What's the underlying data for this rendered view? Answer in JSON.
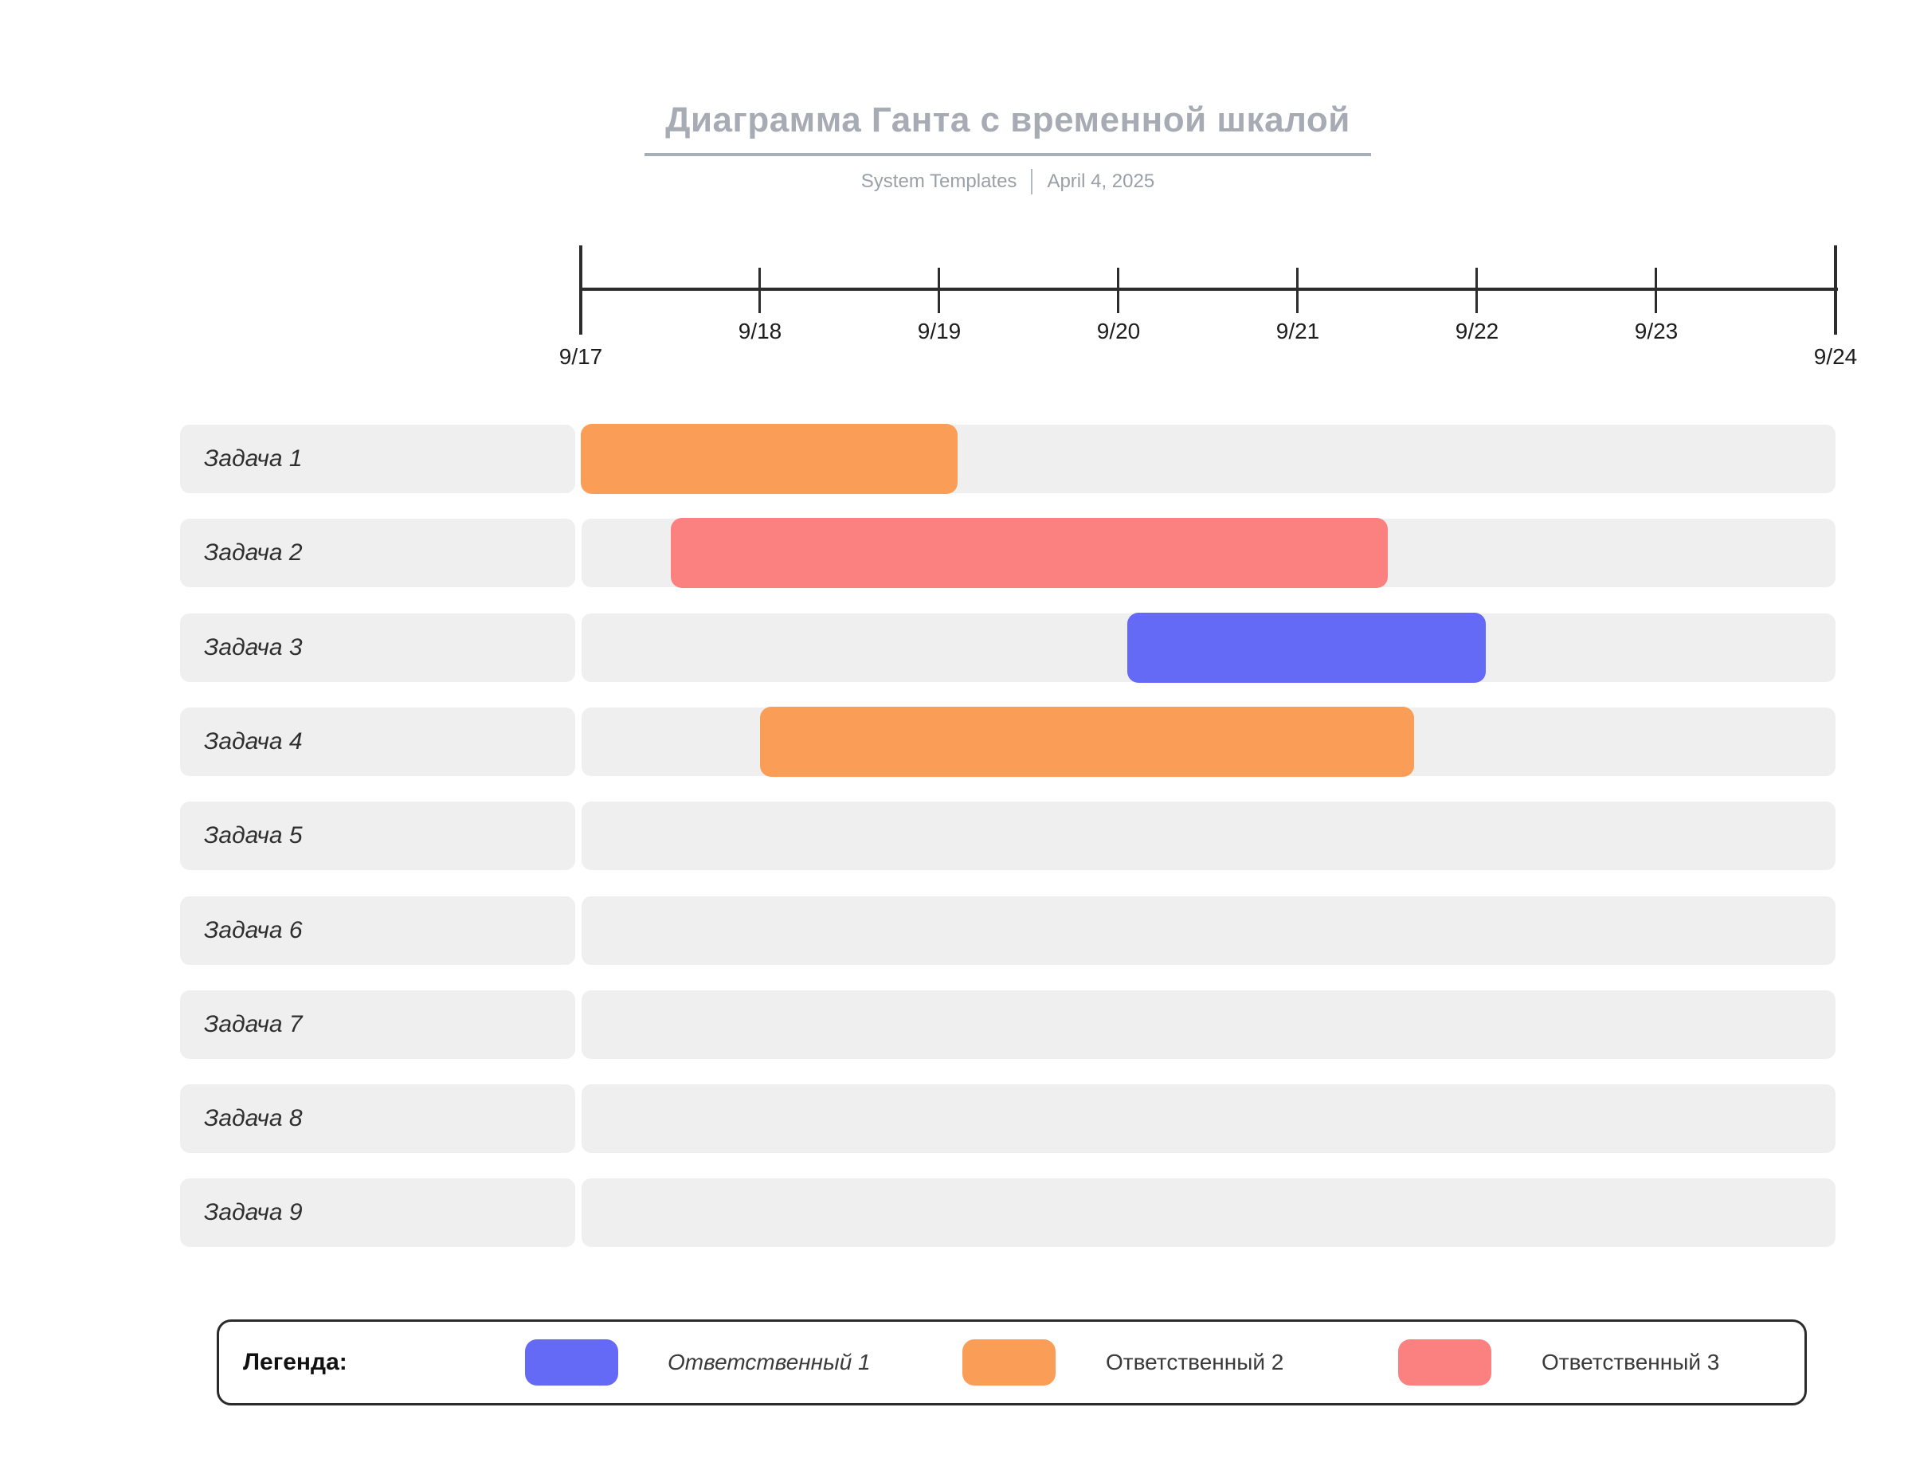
{
  "header": {
    "title": "Диаграмма Ганта с временной шкалой",
    "source": "System Templates",
    "date": "April 4, 2025"
  },
  "colors": {
    "orange": "#FA9D56",
    "salmon": "#FB8181",
    "blue": "#656AF6",
    "track_gray": "#EFEFEF",
    "title_gray": "#A7ABB3",
    "axis_dark": "#2D2D2D"
  },
  "chart_data": {
    "type": "gantt",
    "title": "Диаграмма Ганта с временной шкалой",
    "timeline": {
      "ticks": [
        "9/17",
        "9/18",
        "9/19",
        "9/20",
        "9/21",
        "9/22",
        "9/23",
        "9/24"
      ],
      "day_min": 0,
      "day_max": 7,
      "grid": false
    },
    "tasks": [
      {
        "label": "Задача 1",
        "assignee": "Ответственный 2",
        "color": "#FA9D56",
        "start_day": 0,
        "end_day": 2.1
      },
      {
        "label": "Задача 2",
        "assignee": "Ответственный 3",
        "color": "#FB8181",
        "start_day": 0.5,
        "end_day": 4.5
      },
      {
        "label": "Задача 3",
        "assignee": "Ответственный 1",
        "color": "#656AF6",
        "start_day": 3.05,
        "end_day": 5.05
      },
      {
        "label": "Задача 4",
        "assignee": "Ответственный 2",
        "color": "#FA9D56",
        "start_day": 1,
        "end_day": 4.65
      },
      {
        "label": "Задача 5",
        "assignee": null,
        "color": null,
        "start_day": null,
        "end_day": null
      },
      {
        "label": "Задача 6",
        "assignee": null,
        "color": null,
        "start_day": null,
        "end_day": null
      },
      {
        "label": "Задача 7",
        "assignee": null,
        "color": null,
        "start_day": null,
        "end_day": null
      },
      {
        "label": "Задача 8",
        "assignee": null,
        "color": null,
        "start_day": null,
        "end_day": null
      },
      {
        "label": "Задача 9",
        "assignee": null,
        "color": null,
        "start_day": null,
        "end_day": null
      }
    ],
    "legend_position": "bottom"
  },
  "legend": {
    "label": "Легенда:",
    "items": [
      {
        "label": "Ответственный 1",
        "color": "#656AF6",
        "italic": true
      },
      {
        "label": "Ответственный 2",
        "color": "#FA9D56",
        "italic": false
      },
      {
        "label": "Ответственный 3",
        "color": "#FB8181",
        "italic": false
      }
    ]
  }
}
